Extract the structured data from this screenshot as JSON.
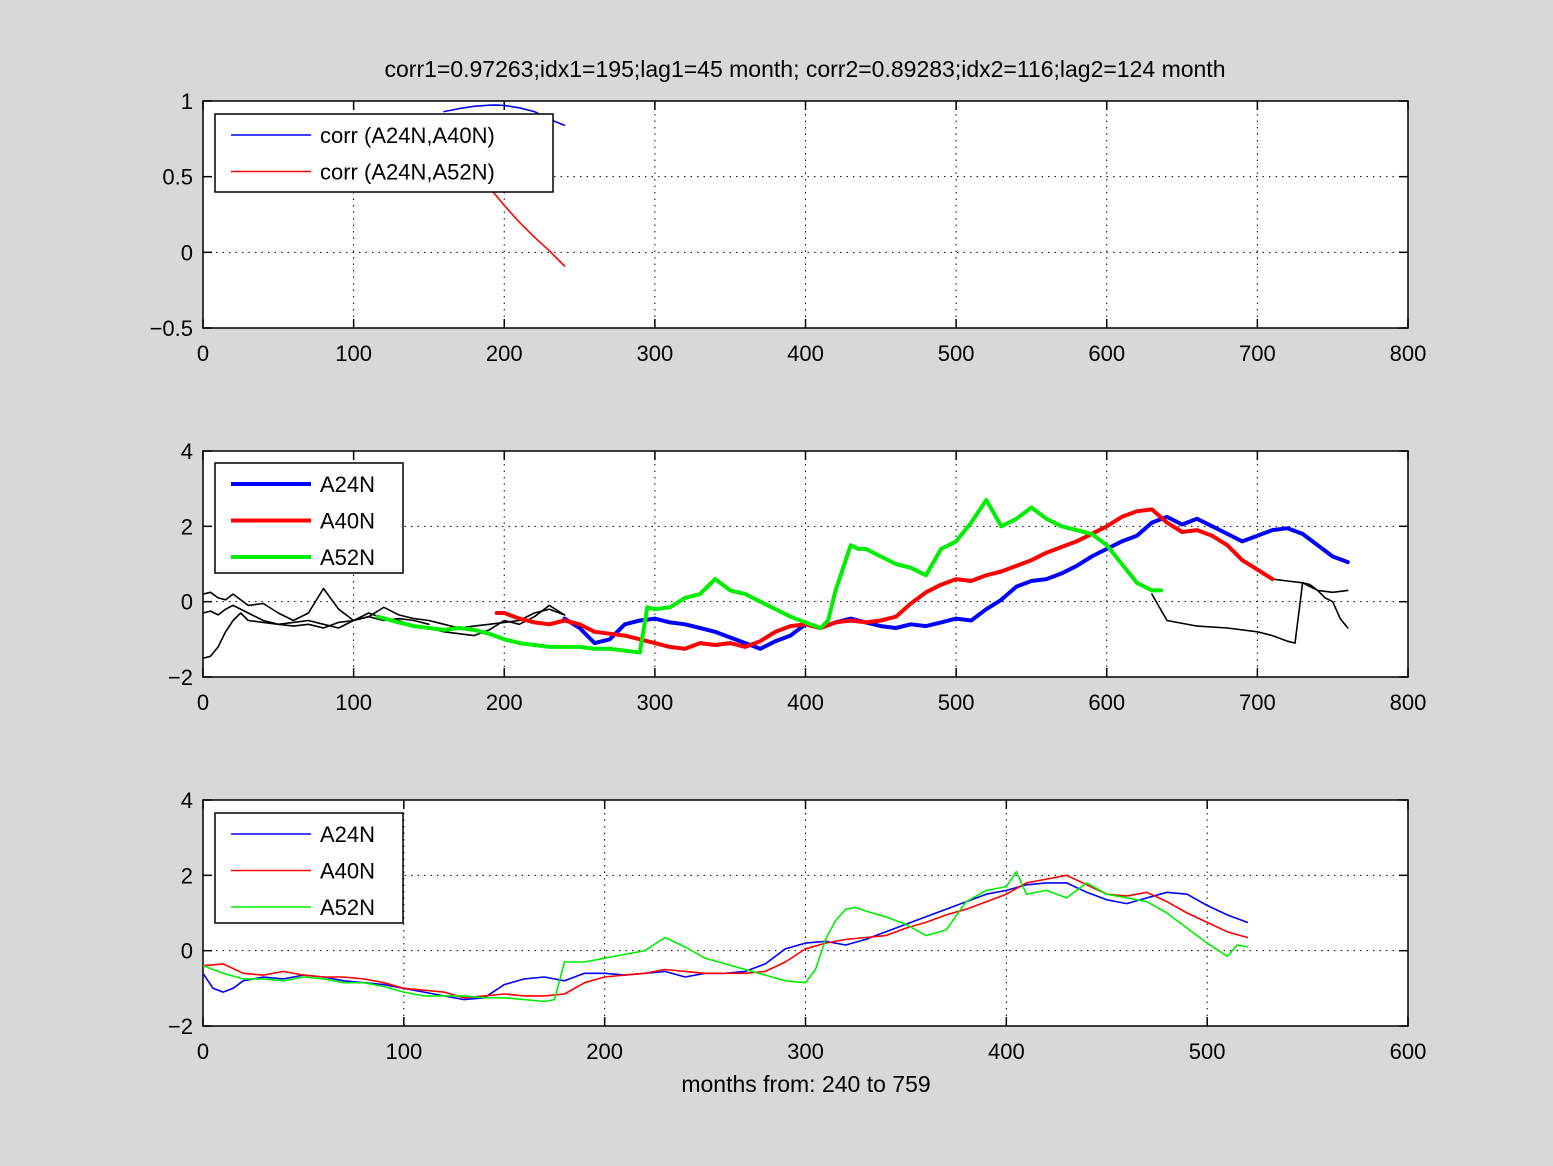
{
  "chart_data": [
    {
      "type": "line",
      "title": "corr1=0.97263;idx1=195;lag1=45 month;   corr2=0.89283;idx2=116;lag2=124 month",
      "xlabel": "",
      "ylabel": "",
      "xlim": [
        0,
        800
      ],
      "ylim": [
        -0.5,
        1
      ],
      "xticks": [
        0,
        100,
        200,
        300,
        400,
        500,
        600,
        700,
        800
      ],
      "yticks": [
        -0.5,
        0,
        0.5,
        1
      ],
      "ytick_labels": [
        "−0.5",
        "0",
        "0.5",
        "1"
      ],
      "grid": true,
      "legend_position": "top-left",
      "series": [
        {
          "name": "corr (A24N,A40N)",
          "color": "#0000ff",
          "width": 1.6,
          "legend": true,
          "x": [
            160,
            170,
            180,
            190,
            195,
            200,
            210,
            220,
            230,
            240
          ],
          "y": [
            0.93,
            0.95,
            0.965,
            0.972,
            0.9726,
            0.97,
            0.955,
            0.93,
            0.88,
            0.84
          ]
        },
        {
          "name": "corr (A24N,A52N)",
          "color": "#ff0000",
          "width": 1.6,
          "legend": true,
          "x": [
            180,
            190,
            200,
            210,
            220,
            230,
            240
          ],
          "y": [
            0.55,
            0.43,
            0.31,
            0.2,
            0.1,
            0.01,
            -0.09
          ]
        }
      ]
    },
    {
      "type": "line",
      "xlim": [
        0,
        800
      ],
      "ylim": [
        -2,
        4
      ],
      "xticks": [
        0,
        100,
        200,
        300,
        400,
        500,
        600,
        700,
        800
      ],
      "yticks": [
        -2,
        0,
        2,
        4
      ],
      "ytick_labels": [
        "−2",
        "0",
        "2",
        "4"
      ],
      "grid": true,
      "legend_position": "top-left",
      "series": [
        {
          "color": "#000000",
          "width": 1.6,
          "legend": false,
          "x": [
            0,
            5,
            10,
            15,
            20,
            30,
            40,
            50,
            60,
            70,
            80,
            90,
            100,
            110,
            120,
            130,
            140,
            150,
            160,
            170,
            180,
            190,
            200,
            210,
            220,
            230,
            240
          ],
          "y": [
            0.2,
            0.25,
            0.1,
            0.05,
            0.2,
            -0.1,
            -0.05,
            -0.3,
            -0.5,
            -0.3,
            0.35,
            -0.2,
            -0.5,
            -0.4,
            -0.15,
            -0.35,
            -0.45,
            -0.5,
            -0.6,
            -0.7,
            -0.65,
            -0.6,
            -0.55,
            -0.5,
            -0.3,
            -0.2,
            -0.35
          ]
        },
        {
          "color": "#000000",
          "width": 1.6,
          "legend": false,
          "x": [
            0,
            5,
            10,
            15,
            20,
            30,
            40,
            50,
            60,
            70,
            80,
            90,
            100,
            110,
            120,
            130,
            140,
            150,
            160,
            170,
            180,
            190,
            200,
            210,
            220,
            230,
            240
          ],
          "y": [
            -0.3,
            -0.25,
            -0.35,
            -0.2,
            -0.1,
            -0.3,
            -0.5,
            -0.6,
            -0.55,
            -0.5,
            -0.6,
            -0.7,
            -0.5,
            -0.3,
            -0.45,
            -0.5,
            -0.65,
            -0.7,
            -0.8,
            -0.85,
            -0.9,
            -0.75,
            -0.5,
            -0.6,
            -0.4,
            -0.1,
            -0.35
          ]
        },
        {
          "color": "#000000",
          "width": 1.6,
          "legend": false,
          "x": [
            0,
            5,
            10,
            15,
            20,
            25,
            30,
            40,
            50,
            60,
            70,
            80,
            90,
            100,
            110,
            120,
            130,
            140,
            150
          ],
          "y": [
            -1.5,
            -1.45,
            -1.2,
            -0.8,
            -0.5,
            -0.3,
            -0.5,
            -0.55,
            -0.6,
            -0.65,
            -0.6,
            -0.7,
            -0.55,
            -0.5,
            -0.4,
            -0.5,
            -0.45,
            -0.5,
            -0.6
          ]
        },
        {
          "color": "#000000",
          "width": 1.6,
          "legend": false,
          "x": [
            630,
            640,
            660,
            680,
            700,
            710,
            720,
            725,
            730,
            735,
            740,
            745,
            750,
            755,
            760
          ],
          "y": [
            0.2,
            -0.5,
            -0.65,
            -0.7,
            -0.8,
            -0.9,
            -1.05,
            -1.1,
            0.5,
            0.45,
            0.3,
            0.1,
            0.0,
            -0.45,
            -0.7
          ]
        },
        {
          "color": "#000000",
          "width": 1.6,
          "legend": false,
          "x": [
            710,
            720,
            730,
            740,
            750,
            760
          ],
          "y": [
            0.6,
            0.55,
            0.5,
            0.3,
            0.25,
            0.3
          ]
        },
        {
          "name": "A24N",
          "color": "#0000ff",
          "width": 4,
          "legend": true,
          "x": [
            240,
            250,
            260,
            270,
            280,
            290,
            300,
            310,
            320,
            330,
            340,
            350,
            360,
            370,
            380,
            390,
            400,
            410,
            420,
            430,
            440,
            450,
            460,
            470,
            480,
            490,
            500,
            510,
            520,
            530,
            540,
            550,
            560,
            570,
            580,
            590,
            600,
            610,
            620,
            630,
            640,
            650,
            660,
            670,
            680,
            690,
            700,
            710,
            720,
            730,
            740,
            750,
            760
          ],
          "y": [
            -0.45,
            -0.7,
            -1.1,
            -1.0,
            -0.6,
            -0.5,
            -0.45,
            -0.55,
            -0.6,
            -0.7,
            -0.8,
            -0.95,
            -1.1,
            -1.25,
            -1.05,
            -0.9,
            -0.6,
            -0.7,
            -0.55,
            -0.45,
            -0.55,
            -0.65,
            -0.7,
            -0.6,
            -0.65,
            -0.55,
            -0.45,
            -0.5,
            -0.2,
            0.05,
            0.4,
            0.55,
            0.6,
            0.75,
            0.95,
            1.2,
            1.4,
            1.6,
            1.75,
            2.1,
            2.25,
            2.05,
            2.2,
            2.0,
            1.8,
            1.6,
            1.75,
            1.9,
            1.95,
            1.8,
            1.5,
            1.2,
            1.05
          ]
        },
        {
          "name": "A40N",
          "color": "#ff0000",
          "width": 4,
          "legend": true,
          "x": [
            195,
            200,
            210,
            220,
            230,
            240,
            250,
            260,
            270,
            280,
            290,
            300,
            310,
            320,
            330,
            340,
            350,
            360,
            370,
            380,
            390,
            400,
            410,
            420,
            430,
            440,
            450,
            460,
            470,
            480,
            490,
            500,
            510,
            520,
            530,
            540,
            550,
            560,
            570,
            580,
            590,
            600,
            610,
            620,
            630,
            640,
            650,
            660,
            670,
            680,
            690,
            700,
            710
          ],
          "y": [
            -0.3,
            -0.3,
            -0.45,
            -0.55,
            -0.6,
            -0.5,
            -0.6,
            -0.8,
            -0.85,
            -0.9,
            -1.0,
            -1.1,
            -1.2,
            -1.25,
            -1.1,
            -1.15,
            -1.1,
            -1.2,
            -1.05,
            -0.8,
            -0.65,
            -0.6,
            -0.7,
            -0.55,
            -0.5,
            -0.55,
            -0.5,
            -0.4,
            -0.05,
            0.25,
            0.45,
            0.6,
            0.55,
            0.7,
            0.8,
            0.95,
            1.1,
            1.3,
            1.45,
            1.6,
            1.8,
            2.0,
            2.25,
            2.4,
            2.45,
            2.1,
            1.85,
            1.9,
            1.75,
            1.5,
            1.1,
            0.85,
            0.6
          ]
        },
        {
          "name": "A52N",
          "color": "#00ee00",
          "width": 4,
          "legend": true,
          "x": [
            116,
            130,
            140,
            150,
            160,
            170,
            180,
            190,
            200,
            210,
            220,
            230,
            240,
            250,
            260,
            270,
            280,
            290,
            295,
            300,
            310,
            320,
            330,
            340,
            350,
            360,
            370,
            380,
            390,
            400,
            410,
            415,
            420,
            425,
            430,
            435,
            440,
            450,
            460,
            470,
            480,
            490,
            500,
            510,
            520,
            530,
            540,
            550,
            560,
            570,
            580,
            590,
            600,
            610,
            620,
            630,
            636
          ],
          "y": [
            -0.4,
            -0.55,
            -0.65,
            -0.7,
            -0.75,
            -0.7,
            -0.75,
            -0.85,
            -1.0,
            -1.1,
            -1.15,
            -1.2,
            -1.2,
            -1.2,
            -1.25,
            -1.25,
            -1.3,
            -1.35,
            -0.15,
            -0.2,
            -0.15,
            0.1,
            0.2,
            0.6,
            0.3,
            0.2,
            0.0,
            -0.2,
            -0.4,
            -0.55,
            -0.7,
            -0.5,
            0.3,
            0.9,
            1.5,
            1.4,
            1.4,
            1.2,
            1.0,
            0.9,
            0.7,
            1.4,
            1.6,
            2.1,
            2.7,
            2.0,
            2.2,
            2.5,
            2.2,
            2.0,
            1.9,
            1.8,
            1.5,
            1.0,
            0.5,
            0.3,
            0.3
          ]
        }
      ]
    },
    {
      "type": "line",
      "xlabel": "months from: 240 to 759",
      "xlim": [
        0,
        600
      ],
      "ylim": [
        -2,
        4
      ],
      "xticks": [
        0,
        100,
        200,
        300,
        400,
        500,
        600
      ],
      "yticks": [
        -2,
        0,
        2,
        4
      ],
      "ytick_labels": [
        "−2",
        "0",
        "2",
        "4"
      ],
      "grid": true,
      "legend_position": "top-left",
      "series": [
        {
          "name": "A24N",
          "color": "#0000ff",
          "width": 1.6,
          "legend": true,
          "x": [
            0,
            5,
            10,
            15,
            20,
            30,
            40,
            50,
            60,
            70,
            80,
            90,
            100,
            110,
            120,
            130,
            140,
            150,
            160,
            170,
            180,
            190,
            200,
            210,
            220,
            230,
            240,
            250,
            260,
            270,
            280,
            290,
            300,
            310,
            320,
            330,
            340,
            350,
            360,
            370,
            380,
            390,
            400,
            410,
            420,
            430,
            440,
            450,
            460,
            470,
            480,
            490,
            500,
            510,
            520
          ],
          "y": [
            -0.6,
            -1.0,
            -1.1,
            -1.0,
            -0.8,
            -0.7,
            -0.75,
            -0.65,
            -0.7,
            -0.8,
            -0.85,
            -0.9,
            -1.0,
            -1.1,
            -1.2,
            -1.3,
            -1.25,
            -0.9,
            -0.75,
            -0.7,
            -0.8,
            -0.6,
            -0.6,
            -0.65,
            -0.6,
            -0.55,
            -0.7,
            -0.6,
            -0.6,
            -0.55,
            -0.35,
            0.05,
            0.2,
            0.25,
            0.15,
            0.3,
            0.5,
            0.7,
            0.9,
            1.1,
            1.3,
            1.5,
            1.6,
            1.75,
            1.8,
            1.8,
            1.55,
            1.35,
            1.25,
            1.4,
            1.55,
            1.5,
            1.2,
            0.95,
            0.75
          ]
        },
        {
          "name": "A40N",
          "color": "#ff0000",
          "width": 1.6,
          "legend": true,
          "x": [
            0,
            10,
            20,
            30,
            40,
            50,
            60,
            70,
            80,
            90,
            100,
            110,
            120,
            130,
            140,
            150,
            160,
            170,
            180,
            190,
            200,
            210,
            220,
            230,
            240,
            250,
            260,
            270,
            280,
            290,
            300,
            310,
            320,
            330,
            340,
            350,
            360,
            370,
            380,
            390,
            400,
            410,
            420,
            430,
            440,
            450,
            460,
            470,
            480,
            490,
            500,
            510,
            520
          ],
          "y": [
            -0.4,
            -0.35,
            -0.6,
            -0.65,
            -0.55,
            -0.65,
            -0.7,
            -0.7,
            -0.75,
            -0.85,
            -1.0,
            -1.05,
            -1.1,
            -1.25,
            -1.2,
            -1.15,
            -1.2,
            -1.2,
            -1.15,
            -0.85,
            -0.7,
            -0.65,
            -0.6,
            -0.5,
            -0.55,
            -0.6,
            -0.6,
            -0.6,
            -0.55,
            -0.3,
            0.05,
            0.2,
            0.3,
            0.35,
            0.4,
            0.6,
            0.75,
            0.95,
            1.1,
            1.3,
            1.5,
            1.8,
            1.9,
            2.0,
            1.75,
            1.5,
            1.45,
            1.55,
            1.3,
            1.0,
            0.75,
            0.5,
            0.35
          ]
        },
        {
          "name": "A52N",
          "color": "#00ee00",
          "width": 1.6,
          "legend": true,
          "x": [
            0,
            10,
            20,
            30,
            40,
            50,
            60,
            70,
            80,
            90,
            100,
            110,
            120,
            130,
            140,
            150,
            160,
            170,
            175,
            180,
            190,
            200,
            210,
            220,
            230,
            240,
            250,
            260,
            270,
            280,
            290,
            300,
            305,
            310,
            315,
            320,
            325,
            330,
            340,
            350,
            360,
            370,
            380,
            390,
            400,
            405,
            410,
            420,
            430,
            440,
            450,
            460,
            470,
            480,
            490,
            500,
            510,
            515,
            520
          ],
          "y": [
            -0.4,
            -0.6,
            -0.75,
            -0.75,
            -0.8,
            -0.7,
            -0.75,
            -0.85,
            -0.85,
            -0.95,
            -1.1,
            -1.2,
            -1.2,
            -1.2,
            -1.25,
            -1.25,
            -1.3,
            -1.35,
            -1.3,
            -0.3,
            -0.3,
            -0.2,
            -0.1,
            0.0,
            0.35,
            0.1,
            -0.2,
            -0.35,
            -0.5,
            -0.65,
            -0.8,
            -0.85,
            -0.5,
            0.3,
            0.8,
            1.1,
            1.15,
            1.05,
            0.9,
            0.7,
            0.4,
            0.55,
            1.3,
            1.6,
            1.7,
            2.1,
            1.5,
            1.6,
            1.4,
            1.8,
            1.5,
            1.4,
            1.3,
            1.0,
            0.6,
            0.2,
            -0.15,
            0.15,
            0.1
          ]
        }
      ]
    }
  ]
}
